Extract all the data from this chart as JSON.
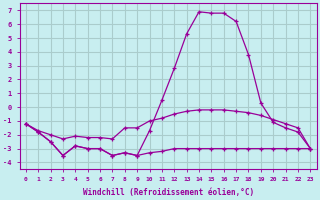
{
  "xlabel": "Windchill (Refroidissement éolien,°C)",
  "x": [
    0,
    1,
    2,
    3,
    4,
    5,
    6,
    7,
    8,
    9,
    10,
    11,
    12,
    13,
    14,
    15,
    16,
    17,
    18,
    19,
    20,
    21,
    22,
    23
  ],
  "line_top": [
    -1.2,
    -1.8,
    -2.5,
    -3.5,
    -2.8,
    -3.0,
    -3.0,
    -3.5,
    -3.3,
    -3.5,
    -1.7,
    0.5,
    2.8,
    5.3,
    6.9,
    6.8,
    6.8,
    6.2,
    3.8,
    0.3,
    -1.1,
    -1.5,
    -1.8,
    -3.0
  ],
  "line_mid": [
    -1.2,
    -1.7,
    -2.0,
    -2.3,
    -2.1,
    -2.2,
    -2.2,
    -2.3,
    -1.5,
    -1.5,
    -1.0,
    -0.8,
    -0.5,
    -0.3,
    -0.2,
    -0.2,
    -0.2,
    -0.3,
    -0.4,
    -0.6,
    -0.9,
    -1.2,
    -1.5,
    -3.0
  ],
  "line_bot": [
    -1.2,
    -1.8,
    -2.5,
    -3.5,
    -2.8,
    -3.0,
    -3.0,
    -3.5,
    -3.3,
    -3.5,
    -3.3,
    -3.2,
    -3.0,
    -3.0,
    -3.0,
    -3.0,
    -3.0,
    -3.0,
    -3.0,
    -3.0,
    -3.0,
    -3.0,
    -3.0,
    -3.0
  ],
  "color": "#990099",
  "bg_color": "#c8eef0",
  "grid_color": "#aacccc",
  "ylim": [
    -4.5,
    7.5
  ],
  "yticks": [
    -4,
    -3,
    -2,
    -1,
    0,
    1,
    2,
    3,
    4,
    5,
    6,
    7
  ],
  "xlim": [
    -0.5,
    23.5
  ],
  "xticks": [
    0,
    1,
    2,
    3,
    4,
    5,
    6,
    7,
    8,
    9,
    10,
    11,
    12,
    13,
    14,
    15,
    16,
    17,
    18,
    19,
    20,
    21,
    22,
    23
  ]
}
